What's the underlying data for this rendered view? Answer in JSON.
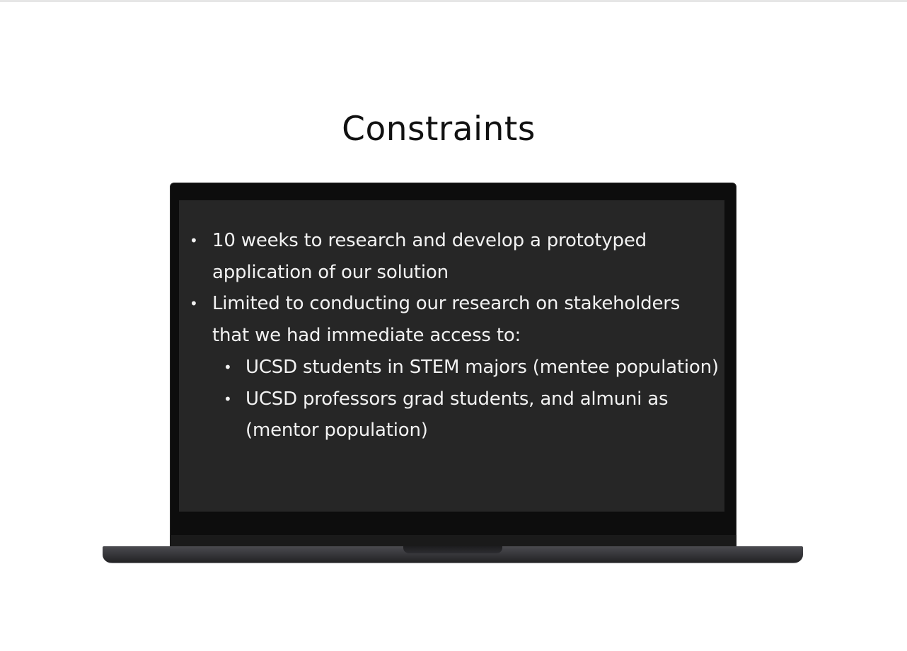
{
  "slide": {
    "title": "Constraints"
  },
  "constraints": {
    "items": [
      {
        "text": "10 weeks to research and develop a prototyped application of our solution"
      },
      {
        "text": "Limited to conducting our research on stakeholders that we had immediate access to:",
        "sub_items": [
          {
            "text": "UCSD students in STEM majors (mentee population)"
          },
          {
            "text": "UCSD professors grad students, and almuni as (mentor population)"
          }
        ]
      }
    ]
  },
  "colors": {
    "background": "#ffffff",
    "screen": "#262626",
    "bezel": "#0d0d0d",
    "text_on_screen": "#f2f2f2",
    "title": "#111111"
  },
  "icons": {
    "device": "laptop-mockup",
    "bullet": "bullet-dot"
  }
}
